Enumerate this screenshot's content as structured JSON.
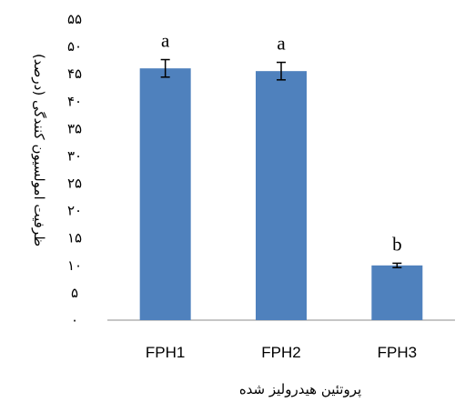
{
  "chart_data": {
    "type": "bar",
    "title": "",
    "xlabel": "پروتئین هیدرولیز شده",
    "ylabel": "ظرفیت امولسیون کنندگی (درصد)",
    "categories": [
      "FPH1",
      "FPH2",
      "FPH3"
    ],
    "series": [
      {
        "values": [
          46,
          45.5,
          10
        ],
        "errors": [
          1.6,
          1.6,
          0.4
        ],
        "significance_labels": [
          "a",
          "a",
          "b"
        ]
      }
    ],
    "ylim": [
      0,
      55
    ],
    "yticks": [
      0,
      5,
      10,
      15,
      20,
      25,
      30,
      35,
      40,
      45,
      50,
      55
    ],
    "ytick_labels": [
      "۰",
      "۵",
      "۱۰",
      "۱۵",
      "۲۰",
      "۲۵",
      "۳۰",
      "۳۵",
      "۴۰",
      "۴۵",
      "۵۰",
      "۵۵"
    ],
    "grid": false,
    "legend": "none",
    "bar_color": "#4F81BD"
  }
}
